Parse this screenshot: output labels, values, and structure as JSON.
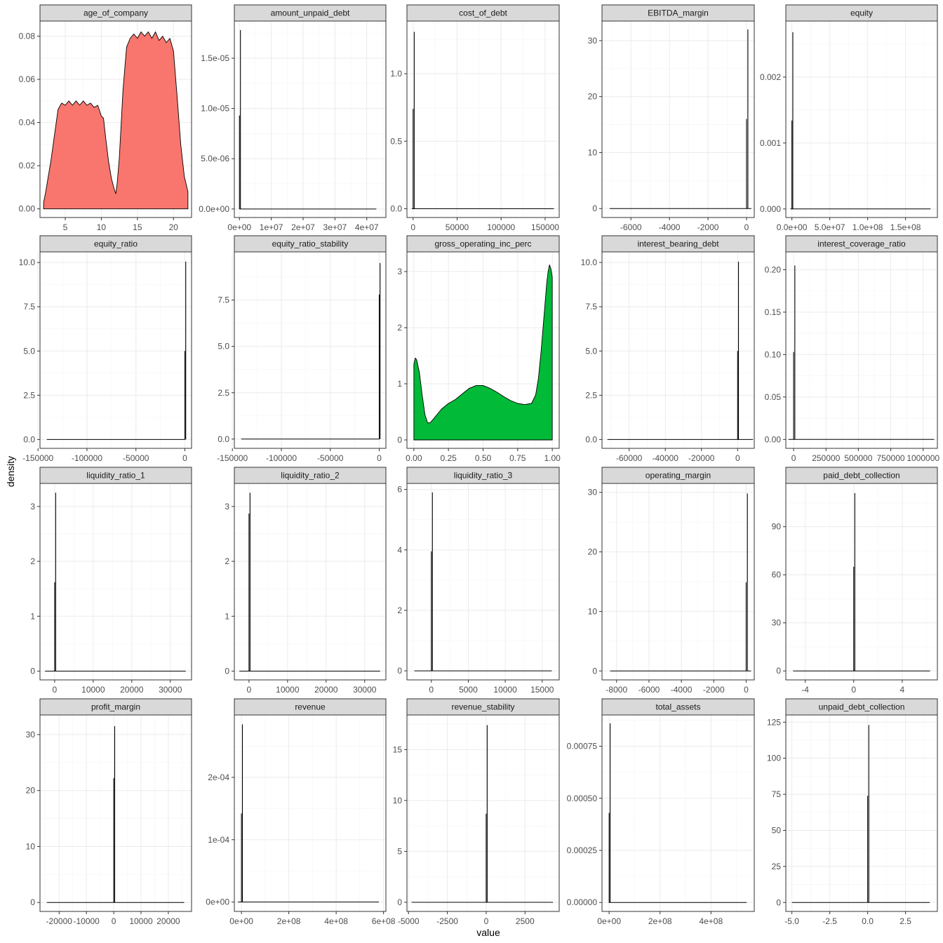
{
  "figure": {
    "xlabel": "value",
    "ylabel": "density"
  },
  "colors": {
    "panel_border": "#333333",
    "strip_fill": "#d9d9d9",
    "grid_major": "#ebebeb",
    "grid_minor": "#f5f5f5",
    "line": "#000000",
    "fill_red": "#f8766d",
    "fill_green": "#00ba38"
  },
  "chart_data": [
    {
      "title": "age_of_company",
      "type": "area",
      "fill": "fill_red",
      "xlim": [
        1.5,
        22.5
      ],
      "ylim": [
        -0.004,
        0.087
      ],
      "xticks": [
        5,
        10,
        15,
        20
      ],
      "xtick_labels": [
        "5",
        "10",
        "15",
        "20"
      ],
      "yticks": [
        0,
        0.02,
        0.04,
        0.06,
        0.08
      ],
      "ytick_labels": [
        "0.00",
        "0.02",
        "0.04",
        "0.06",
        "0.08"
      ],
      "x": [
        2,
        2.3,
        2.6,
        3,
        3.5,
        4,
        4.5,
        5,
        5.5,
        6,
        6.5,
        7,
        7.5,
        8,
        8.5,
        9,
        9.5,
        10,
        10.3,
        10.6,
        11,
        11.4,
        11.8,
        12,
        12.2,
        12.5,
        13,
        13.5,
        14,
        14.5,
        15,
        15.5,
        16,
        16.5,
        17,
        17.5,
        18,
        18.5,
        19,
        19.5,
        20,
        20.5,
        21,
        21.5,
        22
      ],
      "y": [
        0.003,
        0.008,
        0.014,
        0.022,
        0.034,
        0.046,
        0.049,
        0.048,
        0.05,
        0.048,
        0.05,
        0.048,
        0.05,
        0.048,
        0.049,
        0.047,
        0.048,
        0.043,
        0.042,
        0.033,
        0.022,
        0.014,
        0.009,
        0.007,
        0.012,
        0.024,
        0.055,
        0.075,
        0.079,
        0.081,
        0.079,
        0.082,
        0.08,
        0.082,
        0.079,
        0.082,
        0.078,
        0.08,
        0.077,
        0.079,
        0.073,
        0.052,
        0.03,
        0.015,
        0.008
      ]
    },
    {
      "title": "amount_unpaid_debt",
      "type": "spike",
      "xlim": [
        -1600000.0,
        46000000.0
      ],
      "ylim": [
        -8.5e-07,
        1.87e-05
      ],
      "xticks": [
        0,
        10000000.0,
        20000000.0,
        30000000.0,
        40000000.0
      ],
      "xtick_labels": [
        "0e+00",
        "1e+07",
        "2e+07",
        "3e+07",
        "4e+07"
      ],
      "yticks": [
        0,
        5e-06,
        1e-05,
        1.5e-05
      ],
      "ytick_labels": [
        "0.0e+00",
        "5.0e-06",
        "1.0e-05",
        "1.5e-05"
      ],
      "baseline": [
        0,
        43000000.0
      ],
      "spike_x": [
        0,
        45000
      ],
      "spike_y": [
        9.3e-06,
        1.78e-05
      ]
    },
    {
      "title": "cost_of_debt",
      "type": "spike",
      "xlim": [
        -7000,
        166000
      ],
      "ylim": [
        -0.065,
        1.39
      ],
      "xticks": [
        0,
        50000,
        100000,
        150000
      ],
      "xtick_labels": [
        "0",
        "50000",
        "100000",
        "150000"
      ],
      "yticks": [
        0,
        0.5,
        1.0
      ],
      "ytick_labels": [
        "0.0",
        "0.5",
        "1.0"
      ],
      "baseline": [
        -1500,
        160000
      ],
      "spike_x": [
        0,
        300
      ],
      "spike_y": [
        0.74,
        1.31
      ]
    },
    {
      "title": "EBITDA_margin",
      "type": "spike",
      "xlim": [
        -7500,
        400
      ],
      "ylim": [
        -1.6,
        33.5
      ],
      "xticks": [
        -6000,
        -4000,
        -2000,
        0
      ],
      "xtick_labels": [
        "-6000",
        "-4000",
        "-2000",
        "0"
      ],
      "yticks": [
        0,
        10,
        20,
        30
      ],
      "ytick_labels": [
        "0",
        "10",
        "20",
        "30"
      ],
      "baseline": [
        -7100,
        250
      ],
      "spike_x": [
        0,
        25
      ],
      "spike_y": [
        16,
        32
      ]
    },
    {
      "title": "equity",
      "type": "spike",
      "xlim": [
        -8000000.0,
        192000000.0
      ],
      "ylim": [
        -0.00013,
        0.00285
      ],
      "xticks": [
        0,
        50000000.0,
        100000000.0,
        150000000.0
      ],
      "xtick_labels": [
        "0.0e+00",
        "5.0e+07",
        "1.0e+08",
        "1.5e+08"
      ],
      "yticks": [
        0,
        0.001,
        0.002
      ],
      "ytick_labels": [
        "0.000",
        "0.001",
        "0.002"
      ],
      "baseline": [
        -2000000.0,
        183000000.0
      ],
      "spike_x": [
        0,
        100000
      ],
      "spike_y": [
        0.00134,
        0.00268
      ]
    },
    {
      "title": "equity_ratio",
      "type": "spike",
      "xlim": [
        -148000,
        6800
      ],
      "ylim": [
        -0.5,
        10.6
      ],
      "xticks": [
        -150000,
        -100000,
        -50000,
        0
      ],
      "xtick_labels": [
        "-150000",
        "-100000",
        "-50000",
        "0"
      ],
      "yticks": [
        0,
        2.5,
        5,
        7.5,
        10
      ],
      "ytick_labels": [
        "0.0",
        "2.5",
        "5.0",
        "7.5",
        "10.0"
      ],
      "baseline": [
        -141000,
        0
      ],
      "spike_x": [
        0,
        10
      ],
      "spike_y": [
        5.0,
        10.05
      ]
    },
    {
      "title": "equity_ratio_stability",
      "type": "spike",
      "xlim": [
        -148000,
        6800
      ],
      "ylim": [
        -0.5,
        10.1
      ],
      "xticks": [
        -150000,
        -100000,
        -50000,
        0
      ],
      "xtick_labels": [
        "-150000",
        "-100000",
        "-50000",
        "0"
      ],
      "yticks": [
        0,
        2.5,
        5,
        7.5
      ],
      "ytick_labels": [
        "0.0",
        "2.5",
        "5.0",
        "7.5"
      ],
      "baseline": [
        -141000,
        0
      ],
      "spike_x": [
        0,
        10
      ],
      "spike_y": [
        7.8,
        9.5
      ]
    },
    {
      "title": "gross_operating_inc_perc",
      "type": "area",
      "fill": "fill_green",
      "xlim": [
        -0.05,
        1.05
      ],
      "ylim": [
        -0.15,
        3.35
      ],
      "xticks": [
        0,
        0.25,
        0.5,
        0.75,
        1.0
      ],
      "xtick_labels": [
        "0.00",
        "0.25",
        "0.50",
        "0.75",
        "1.00"
      ],
      "yticks": [
        0,
        1,
        2,
        3
      ],
      "ytick_labels": [
        "0",
        "1",
        "2",
        "3"
      ],
      "x": [
        0,
        0.01,
        0.02,
        0.04,
        0.06,
        0.08,
        0.1,
        0.12,
        0.15,
        0.2,
        0.25,
        0.3,
        0.35,
        0.4,
        0.45,
        0.5,
        0.55,
        0.6,
        0.65,
        0.7,
        0.75,
        0.8,
        0.85,
        0.88,
        0.9,
        0.92,
        0.94,
        0.96,
        0.97,
        0.98,
        0.99,
        1.0
      ],
      "y": [
        1.35,
        1.46,
        1.43,
        1.2,
        0.8,
        0.45,
        0.3,
        0.31,
        0.4,
        0.55,
        0.65,
        0.72,
        0.82,
        0.92,
        0.97,
        0.97,
        0.92,
        0.85,
        0.77,
        0.7,
        0.65,
        0.63,
        0.65,
        0.8,
        1.1,
        1.6,
        2.2,
        2.8,
        3.0,
        3.12,
        3.05,
        2.9
      ]
    },
    {
      "title": "interest_bearing_debt",
      "type": "spike",
      "xlim": [
        -75000,
        9200
      ],
      "ylim": [
        -0.5,
        10.6
      ],
      "xticks": [
        -60000,
        -40000,
        -20000,
        0
      ],
      "xtick_labels": [
        "-60000",
        "-40000",
        "-20000",
        "0"
      ],
      "yticks": [
        0,
        2.5,
        5,
        7.5,
        10
      ],
      "ytick_labels": [
        "0.0",
        "2.5",
        "5.0",
        "7.5",
        "10.0"
      ],
      "baseline": [
        -72000,
        8500
      ],
      "spike_x": [
        0,
        10
      ],
      "spike_y": [
        5.0,
        10.05
      ]
    },
    {
      "title": "interest_coverage_ratio",
      "type": "spike",
      "xlim": [
        -60000,
        1110000
      ],
      "ylim": [
        -0.0105,
        0.221
      ],
      "xticks": [
        0,
        250000,
        500000,
        750000,
        1000000
      ],
      "xtick_labels": [
        "0",
        "250000",
        "500000",
        "750000",
        "1000000"
      ],
      "yticks": [
        0,
        0.05,
        0.1,
        0.15,
        0.2
      ],
      "ytick_labels": [
        "0.00",
        "0.05",
        "0.10",
        "0.15",
        "0.20"
      ],
      "baseline": [
        -40000,
        1085000
      ],
      "spike_x": [
        0,
        3000
      ],
      "spike_y": [
        0.103,
        0.205
      ]
    },
    {
      "title": "liquidity_ratio_1",
      "type": "spike",
      "xlim": [
        -3800,
        35500
      ],
      "ylim": [
        -0.16,
        3.42
      ],
      "xticks": [
        0,
        10000,
        20000,
        30000
      ],
      "xtick_labels": [
        "0",
        "10000",
        "20000",
        "30000"
      ],
      "yticks": [
        0,
        1,
        2,
        3
      ],
      "ytick_labels": [
        "0",
        "1",
        "2",
        "3"
      ],
      "baseline": [
        -2500,
        34000
      ],
      "spike_x": [
        0,
        50
      ],
      "spike_y": [
        1.62,
        3.25
      ]
    },
    {
      "title": "liquidity_ratio_2",
      "type": "spike",
      "xlim": [
        -3800,
        35500
      ],
      "ylim": [
        -0.16,
        3.42
      ],
      "xticks": [
        0,
        10000,
        20000,
        30000
      ],
      "xtick_labels": [
        "0",
        "10000",
        "20000",
        "30000"
      ],
      "yticks": [
        0,
        1,
        2,
        3
      ],
      "ytick_labels": [
        "0",
        "1",
        "2",
        "3"
      ],
      "baseline": [
        -2500,
        34000
      ],
      "spike_x": [
        0,
        50
      ],
      "spike_y": [
        2.87,
        3.25
      ]
    },
    {
      "title": "liquidity_ratio_3",
      "type": "spike",
      "xlim": [
        -3300,
        17300
      ],
      "ylim": [
        -0.3,
        6.2
      ],
      "xticks": [
        0,
        5000,
        10000,
        15000
      ],
      "xtick_labels": [
        "0",
        "5000",
        "10000",
        "15000"
      ],
      "yticks": [
        0,
        2,
        4,
        6
      ],
      "ytick_labels": [
        "0",
        "2",
        "4",
        "6"
      ],
      "baseline": [
        -2300,
        16300
      ],
      "spike_x": [
        0,
        30
      ],
      "spike_y": [
        3.95,
        5.9
      ]
    },
    {
      "title": "operating_margin",
      "type": "spike",
      "xlim": [
        -8900,
        500
      ],
      "ylim": [
        -1.5,
        31.5
      ],
      "xticks": [
        -8000,
        -6000,
        -4000,
        -2000,
        0
      ],
      "xtick_labels": [
        "-8000",
        "-6000",
        "-4000",
        "-2000",
        "0"
      ],
      "yticks": [
        0,
        10,
        20,
        30
      ],
      "ytick_labels": [
        "0",
        "10",
        "20",
        "30"
      ],
      "baseline": [
        -8400,
        300
      ],
      "spike_x": [
        0,
        25
      ],
      "spike_y": [
        14.9,
        29.8
      ]
    },
    {
      "title": "paid_debt_collection",
      "type": "spike",
      "xlim": [
        -5.6,
        6.9
      ],
      "ylim": [
        -5.6,
        117
      ],
      "xticks": [
        -4,
        0,
        4
      ],
      "xtick_labels": [
        "-4",
        "0",
        "4"
      ],
      "yticks": [
        0,
        30,
        60,
        90
      ],
      "ytick_labels": [
        "0",
        "30",
        "60",
        "90"
      ],
      "baseline": [
        -5,
        6.3
      ],
      "spike_x": [
        0,
        0.02
      ],
      "spike_y": [
        65,
        111
      ]
    },
    {
      "title": "profit_margin",
      "type": "spike",
      "xlim": [
        -27000,
        28500
      ],
      "ylim": [
        -1.6,
        33.5
      ],
      "xticks": [
        -20000,
        -10000,
        0,
        10000,
        20000
      ],
      "xtick_labels": [
        "-20000",
        "-10000",
        "0",
        "10000",
        "20000"
      ],
      "yticks": [
        0,
        10,
        20,
        30
      ],
      "ytick_labels": [
        "0",
        "10",
        "20",
        "30"
      ],
      "baseline": [
        -24500,
        25800
      ],
      "spike_x": [
        0,
        50
      ],
      "spike_y": [
        22.2,
        31.5
      ]
    },
    {
      "title": "revenue",
      "type": "spike",
      "xlim": [
        -30000000.0,
        610000000.0
      ],
      "ylim": [
        -1.5e-05,
        0.0003
      ],
      "xticks": [
        0,
        200000000.0,
        400000000.0,
        600000000.0
      ],
      "xtick_labels": [
        "0e+00",
        "2e+08",
        "4e+08",
        "6e+08"
      ],
      "yticks": [
        0,
        0.0001,
        0.0002
      ],
      "ytick_labels": [
        "0e+00",
        "1e-04",
        "2e-04"
      ],
      "baseline": [
        -15000000.0,
        580000000.0
      ],
      "spike_x": [
        0,
        500000
      ],
      "spike_y": [
        0.000142,
        0.000285
      ]
    },
    {
      "title": "revenue_stability",
      "type": "spike",
      "xlim": [
        -5100,
        4700
      ],
      "ylim": [
        -0.9,
        18.4
      ],
      "xticks": [
        -5000,
        -2500,
        0,
        2500
      ],
      "xtick_labels": [
        "-5000",
        "-2500",
        "0",
        "2500"
      ],
      "yticks": [
        0,
        5,
        10,
        15
      ],
      "ytick_labels": [
        "0",
        "5",
        "10",
        "15"
      ],
      "baseline": [
        -4800,
        4300
      ],
      "spike_x": [
        0,
        10
      ],
      "spike_y": [
        8.7,
        17.4
      ]
    },
    {
      "title": "total_assets",
      "type": "spike",
      "xlim": [
        -28000000.0,
        570000000.0
      ],
      "ylim": [
        -4.3e-05,
        0.0009
      ],
      "xticks": [
        0,
        200000000.0,
        400000000.0
      ],
      "xtick_labels": [
        "0e+00",
        "2e+08",
        "4e+08"
      ],
      "yticks": [
        0,
        0.00025,
        0.0005,
        0.00075
      ],
      "ytick_labels": [
        "0.00000",
        "0.00025",
        "0.00050",
        "0.00075"
      ],
      "baseline": [
        -1500000.0,
        540000000.0
      ],
      "spike_x": [
        0,
        500000
      ],
      "spike_y": [
        0.00043,
        0.00086
      ]
    },
    {
      "title": "unpaid_debt_collection",
      "type": "spike",
      "xlim": [
        -5.4,
        4.6
      ],
      "ylim": [
        -6.2,
        130
      ],
      "xticks": [
        -5,
        -2.5,
        0,
        2.5
      ],
      "xtick_labels": [
        "-5.0",
        "-2.5",
        "0.0",
        "2.5"
      ],
      "yticks": [
        0,
        25,
        50,
        75,
        100,
        125
      ],
      "ytick_labels": [
        "0",
        "25",
        "50",
        "75",
        "100",
        "125"
      ],
      "baseline": [
        -5,
        4.1
      ],
      "spike_x": [
        0,
        0.02
      ],
      "spike_y": [
        74,
        123
      ]
    }
  ]
}
